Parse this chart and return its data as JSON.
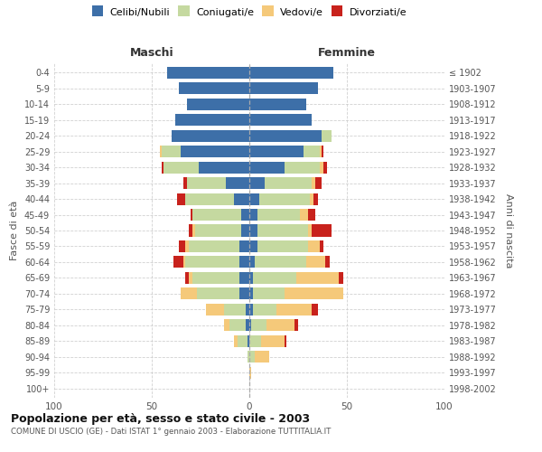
{
  "age_groups": [
    "0-4",
    "5-9",
    "10-14",
    "15-19",
    "20-24",
    "25-29",
    "30-34",
    "35-39",
    "40-44",
    "45-49",
    "50-54",
    "55-59",
    "60-64",
    "65-69",
    "70-74",
    "75-79",
    "80-84",
    "85-89",
    "90-94",
    "95-99",
    "100+"
  ],
  "birth_years": [
    "1998-2002",
    "1993-1997",
    "1988-1992",
    "1983-1987",
    "1978-1982",
    "1973-1977",
    "1968-1972",
    "1963-1967",
    "1958-1962",
    "1953-1957",
    "1948-1952",
    "1943-1947",
    "1938-1942",
    "1933-1937",
    "1928-1932",
    "1923-1927",
    "1918-1922",
    "1913-1917",
    "1908-1912",
    "1903-1907",
    "≤ 1902"
  ],
  "males": {
    "celibi": [
      42,
      36,
      32,
      38,
      40,
      35,
      26,
      12,
      8,
      4,
      4,
      5,
      5,
      5,
      5,
      2,
      2,
      1,
      0,
      0,
      0
    ],
    "coniugati": [
      0,
      0,
      0,
      0,
      0,
      10,
      18,
      20,
      25,
      25,
      24,
      26,
      28,
      24,
      22,
      11,
      8,
      5,
      1,
      0,
      0
    ],
    "vedovi": [
      0,
      0,
      0,
      0,
      0,
      1,
      0,
      0,
      0,
      0,
      1,
      2,
      1,
      2,
      8,
      9,
      3,
      2,
      0,
      0,
      0
    ],
    "divorziati": [
      0,
      0,
      0,
      0,
      0,
      0,
      1,
      2,
      4,
      1,
      2,
      3,
      5,
      2,
      0,
      0,
      0,
      0,
      0,
      0,
      0
    ]
  },
  "females": {
    "nubili": [
      43,
      35,
      29,
      32,
      37,
      28,
      18,
      8,
      5,
      4,
      4,
      4,
      3,
      2,
      2,
      2,
      1,
      0,
      0,
      0,
      0
    ],
    "coniugate": [
      0,
      0,
      0,
      0,
      5,
      8,
      18,
      24,
      26,
      22,
      26,
      26,
      26,
      22,
      16,
      12,
      8,
      6,
      3,
      0,
      0
    ],
    "vedove": [
      0,
      0,
      0,
      0,
      0,
      1,
      2,
      2,
      2,
      4,
      2,
      6,
      10,
      22,
      30,
      18,
      14,
      12,
      7,
      1,
      0
    ],
    "divorziate": [
      0,
      0,
      0,
      0,
      0,
      1,
      2,
      3,
      2,
      4,
      10,
      2,
      2,
      2,
      0,
      3,
      2,
      1,
      0,
      0,
      0
    ]
  },
  "colors": {
    "celibi": "#3d6fa8",
    "coniugati": "#c5d9a0",
    "vedovi": "#f5c97a",
    "divorziati": "#c8221c"
  },
  "legend_labels": [
    "Celibi/Nubili",
    "Coniugati/e",
    "Vedovi/e",
    "Divorziati/e"
  ],
  "title": "Popolazione per età, sesso e stato civile - 2003",
  "subtitle": "COMUNE DI USCIO (GE) - Dati ISTAT 1° gennaio 2003 - Elaborazione TUTTITALIA.IT",
  "xlabel_left": "Maschi",
  "xlabel_right": "Femmine",
  "ylabel_left": "Fasce di età",
  "ylabel_right": "Anni di nascita",
  "xlim": 100,
  "background_color": "#ffffff",
  "grid_color": "#cccccc",
  "bar_height": 0.75
}
